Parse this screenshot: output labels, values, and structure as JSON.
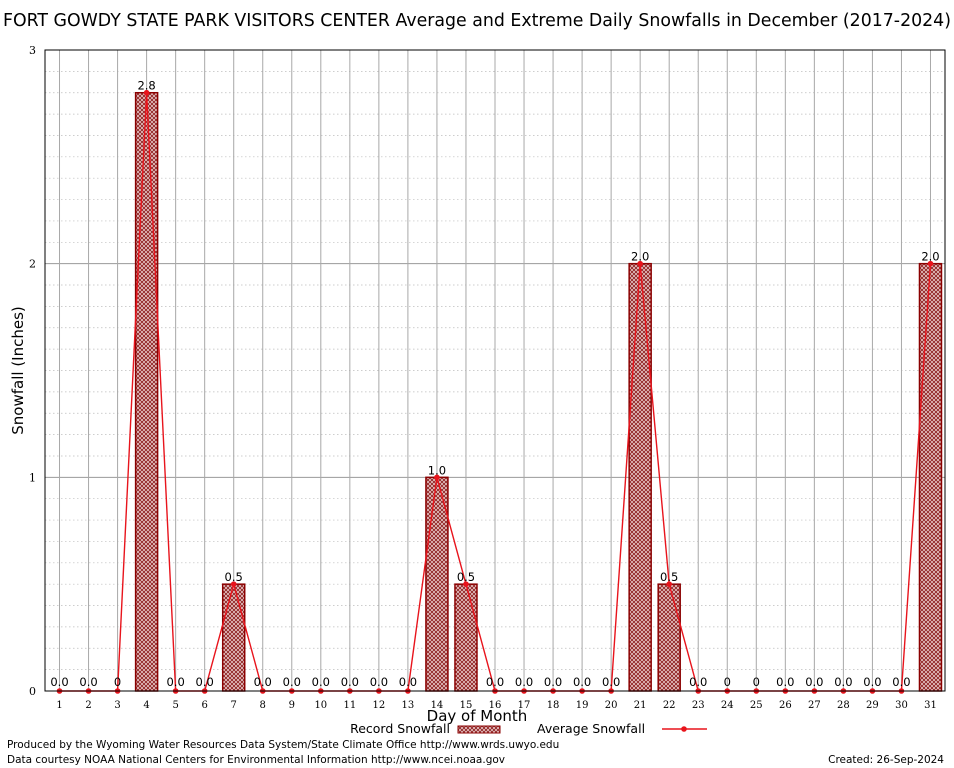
{
  "chart_data": {
    "type": "bar",
    "title": "FORT GOWDY STATE PARK VISITORS CENTER Average and Extreme Daily Snowfalls in December (2017-2024)",
    "xlabel": "Day of Month",
    "ylabel": "Snowfall (Inches)",
    "ylim": [
      0,
      3
    ],
    "yticks": [
      0,
      1,
      2,
      3
    ],
    "grid": true,
    "legend_placement": "bottom-center",
    "categories": [
      "1",
      "2",
      "3",
      "4",
      "5",
      "6",
      "7",
      "8",
      "9",
      "10",
      "11",
      "12",
      "13",
      "14",
      "15",
      "16",
      "17",
      "18",
      "19",
      "20",
      "21",
      "22",
      "23",
      "24",
      "25",
      "26",
      "27",
      "28",
      "29",
      "30",
      "31"
    ],
    "series": [
      {
        "name": "Record Snowfall",
        "type": "bar",
        "values": [
          0,
          0,
          0,
          2.8,
          0,
          0,
          0.5,
          0,
          0,
          0,
          0,
          0,
          0,
          1.0,
          0.5,
          0,
          0,
          0,
          0,
          0,
          2.0,
          0.5,
          0,
          0,
          0,
          0,
          0,
          0,
          0,
          0,
          2.0
        ],
        "labels": [
          "0.0",
          "0.0",
          "0",
          "2.8",
          "0.0",
          "0.0",
          "0.5",
          "0.0",
          "0.0",
          "0.0",
          "0.0",
          "0.0",
          "0.0",
          "1.0",
          "0.5",
          "0.0",
          "0.0",
          "0.0",
          "0.0",
          "0.0",
          "2.0",
          "0.5",
          "0.0",
          "0",
          "0",
          "0.0",
          "0.0",
          "0.0",
          "0.0",
          "0.0",
          "2.0"
        ],
        "color": "#8b0000"
      },
      {
        "name": "Average Snowfall",
        "type": "line",
        "values": [
          0,
          0,
          0,
          2.8,
          0,
          0,
          0.5,
          0,
          0,
          0,
          0,
          0,
          0,
          1.0,
          0.5,
          0,
          0,
          0,
          0,
          0,
          2.0,
          0.5,
          0,
          0,
          0,
          0,
          0,
          0,
          0,
          0,
          2.0
        ],
        "color": "#e8141c"
      }
    ]
  },
  "footer": {
    "produced_by": "Produced by the Wyoming Water Resources Data System/State Climate Office http://www.wrds.uwyo.edu",
    "courtesy": "Data courtesy NOAA National Centers for Environmental Information http://www.ncei.noaa.gov",
    "created": "Created:  26-Sep-2024"
  }
}
